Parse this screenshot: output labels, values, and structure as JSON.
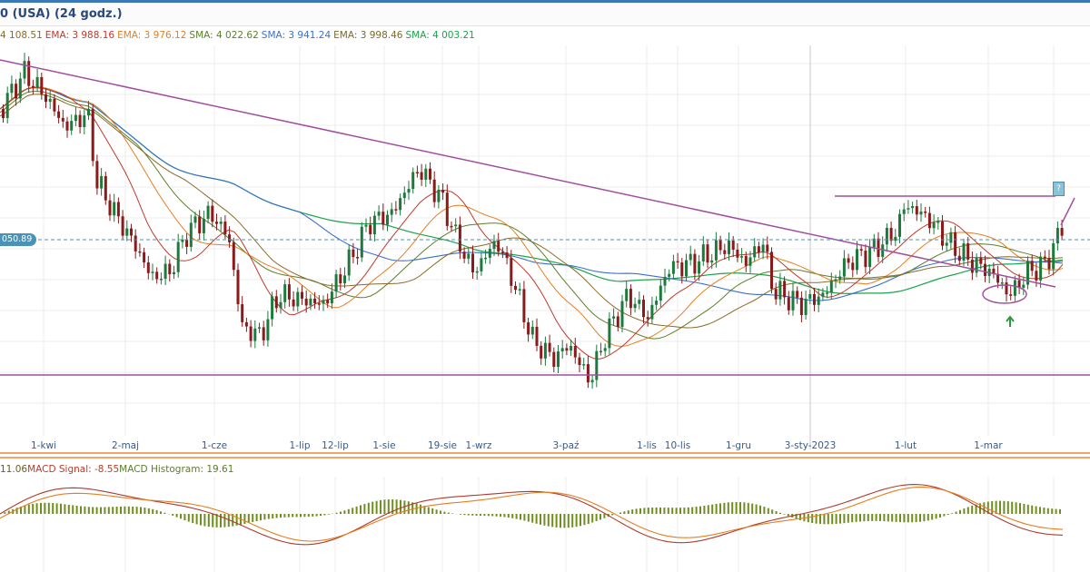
{
  "header": {
    "title": "0 (USA) (24 godz.)"
  },
  "indicators": [
    {
      "text": "4 108.51",
      "color": "#8a6a2a"
    },
    {
      "text": "EMA: 3 988.16",
      "color": "#c0392b"
    },
    {
      "text": "EMA: 3 976.12",
      "color": "#e67e22"
    },
    {
      "text": "SMA: 4 022.62",
      "color": "#5b7f2a"
    },
    {
      "text": "SMA: 3 941.24",
      "color": "#3b6fd0"
    },
    {
      "text": "EMA: 3 998.46",
      "color": "#7a6a2a"
    },
    {
      "text": "SMA: 4 003.21",
      "color": "#1aa34a"
    }
  ],
  "price_label": "050.89",
  "badge_label": "?",
  "macd": {
    "legend": [
      {
        "text": "11.06",
        "color": "#6b5b2a"
      },
      {
        "text": "MACD Signal: -8.55",
        "color": "#c0392b"
      },
      {
        "text": "MACD Histogram: 19.61",
        "color": "#5b7f2a"
      }
    ]
  },
  "colors": {
    "up_candle": "#1e7a3c",
    "down_candle": "#8b1a1a",
    "trendline": "#a04e9e",
    "grid": "#ececec",
    "dashed_level": "#4b93b6",
    "sma_green": "#1aa34a",
    "sma_blue": "#3b6fd0",
    "ema_red": "#c0392b",
    "ema_orange": "#e67e22",
    "sma_olive": "#5b7f2a",
    "macd_line": "#b03a2e",
    "macd_signal": "#e67e22",
    "macd_hist": "#6e8e1e"
  },
  "chart_data": {
    "type": "line",
    "x_tick_labels": [
      "1-kwi",
      "2-maj",
      "1-cze",
      "1-lip",
      "12-lip",
      "1-sie",
      "19-sie",
      "1-wrz",
      "3-paź",
      "1-lis",
      "10-lis",
      "1-gru",
      "3-sty-2023",
      "1-lut",
      "1-mar"
    ],
    "annotations": [
      "descending trendline",
      "horizontal resistance",
      "horizontal support",
      "circled low",
      "up arrow"
    ]
  }
}
